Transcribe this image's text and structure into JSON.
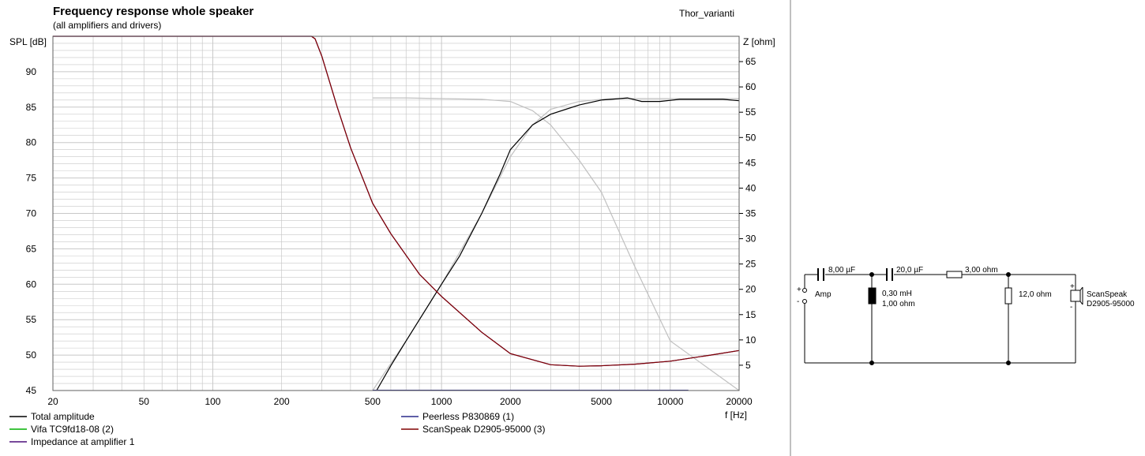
{
  "colors": {
    "grid": "#c8c8c8",
    "frame": "#606060",
    "total_amplitude": "#000000",
    "vifa": "#00b000",
    "impedance": "#4b0f7a",
    "peerless": "#2a2a8a",
    "scanspeak": "#800000",
    "ghost_curves": "#c0c0c0",
    "separator": "#c0c0c0",
    "circuit": "#000000"
  },
  "chart_data": {
    "type": "line",
    "title": "Frequency response whole speaker",
    "subtitle": "(all amplifiers and drivers)",
    "project_name": "Thor_varianti",
    "x_scale": "log",
    "xlabel": "f [Hz]",
    "ylabel_left": "SPL [dB]",
    "ylabel_right": "Z [ohm]",
    "xlim": [
      20,
      20000
    ],
    "ylim_left": [
      45,
      95
    ],
    "ylim_right": [
      0,
      70
    ],
    "x_ticks": [
      20,
      50,
      100,
      200,
      500,
      1000,
      2000,
      5000,
      10000,
      20000
    ],
    "x_tick_labels": [
      "20",
      "50",
      "100",
      "200",
      "500",
      "1000",
      "2000",
      "5000",
      "10000",
      "20000"
    ],
    "y_left_ticks": [
      45,
      50,
      55,
      60,
      65,
      70,
      75,
      80,
      85,
      90
    ],
    "y_left_tick_labels": [
      "45",
      "50",
      "55",
      "60",
      "65",
      "70",
      "75",
      "80",
      "85",
      "90"
    ],
    "y_right_ticks": [
      5,
      10,
      15,
      20,
      25,
      30,
      35,
      40,
      45,
      50,
      55,
      60,
      65
    ],
    "y_right_tick_labels": [
      "5",
      "10",
      "15",
      "20",
      "25",
      "30",
      "35",
      "40",
      "45",
      "50",
      "55",
      "60",
      "65"
    ],
    "grid": true,
    "legend_position": "bottom",
    "series": [
      {
        "name": "Total amplitude",
        "color_key": "total_amplitude",
        "axis": "left",
        "x": [
          520,
          600,
          700,
          800,
          1000,
          1200,
          1500,
          1800,
          2000,
          2500,
          3000,
          3500,
          4000,
          5000,
          6000,
          6500,
          7500,
          9000,
          11000,
          14000,
          17000,
          20000
        ],
        "y": [
          45,
          48.5,
          52,
          55,
          60,
          64,
          70,
          75.5,
          79,
          82.5,
          84,
          84.7,
          85.3,
          86,
          86.2,
          86.3,
          85.8,
          85.8,
          86.1,
          86.1,
          86.1,
          85.9
        ]
      },
      {
        "name": "Vifa TC9fd18-08 (2)",
        "color_key": "vifa",
        "axis": "left",
        "x": [],
        "y": []
      },
      {
        "name": "Impedance at amplifier 1",
        "color_key": "impedance",
        "axis": "right",
        "x": [
          20,
          200,
          270,
          280,
          300,
          350,
          400,
          500,
          600,
          800,
          1000,
          1500,
          2000,
          3000,
          4000,
          5000,
          7000,
          10000,
          15000,
          20000
        ],
        "y": [
          70,
          70,
          70,
          69.5,
          66,
          56,
          48,
          37,
          31,
          23,
          18.6,
          11.5,
          7.3,
          5.1,
          4.8,
          4.9,
          5.2,
          5.8,
          7.0,
          7.9
        ]
      },
      {
        "name": "Peerless P830869 (1)",
        "color_key": "peerless",
        "axis": "left",
        "x": [],
        "y": []
      },
      {
        "name": "ScanSpeak D2905-95000 (3)",
        "color_key": "scanspeak",
        "axis": "right",
        "x": [
          20,
          200,
          270,
          280,
          300,
          350,
          400,
          500,
          600,
          800,
          1000,
          1500,
          2000,
          3000,
          4000,
          5000,
          7000,
          10000,
          15000,
          20000
        ],
        "y": [
          70,
          70,
          70,
          69.5,
          66,
          56,
          48,
          37,
          31,
          23,
          18.6,
          11.5,
          7.3,
          5.1,
          4.8,
          4.9,
          5.2,
          5.8,
          7.0,
          7.9
        ]
      }
    ],
    "background_curves": [
      {
        "x": [
          500,
          700,
          1000,
          1500,
          2000,
          2500,
          3000,
          4000,
          5000,
          7000,
          10000,
          20000
        ],
        "y": [
          86.3,
          86.3,
          86.2,
          86.1,
          85.8,
          84.5,
          82.5,
          77.5,
          73,
          62.5,
          52,
          45
        ]
      },
      {
        "x": [
          500,
          700,
          1000,
          1500,
          2000,
          2500,
          3000,
          4000,
          5000,
          6000,
          20000
        ],
        "y": [
          45,
          52,
          60,
          70,
          78,
          82.5,
          84.7,
          85.8,
          86.1,
          86.2,
          86.2
        ]
      }
    ],
    "legend": [
      {
        "label": "Total amplitude",
        "color_key": "total_amplitude"
      },
      {
        "label": "Vifa TC9fd18-08 (2)",
        "color_key": "vifa"
      },
      {
        "label": "Impedance at amplifier 1",
        "color_key": "impedance"
      },
      {
        "label": "Peerless P830869 (1)",
        "color_key": "peerless"
      },
      {
        "label": "ScanSpeak D2905-95000 (3)",
        "color_key": "scanspeak"
      }
    ]
  },
  "circuit": {
    "c1": "8,00 µF",
    "c2": "20,0 µF",
    "r1": "3,00 ohm",
    "l1_value": "0,30 mH",
    "l1_resistance": "1,00 ohm",
    "r2": "12,0 ohm",
    "source": "Amp",
    "driver_line1": "ScanSpeak",
    "driver_line2": "D2905-95000",
    "plus": "+",
    "minus": "-"
  }
}
